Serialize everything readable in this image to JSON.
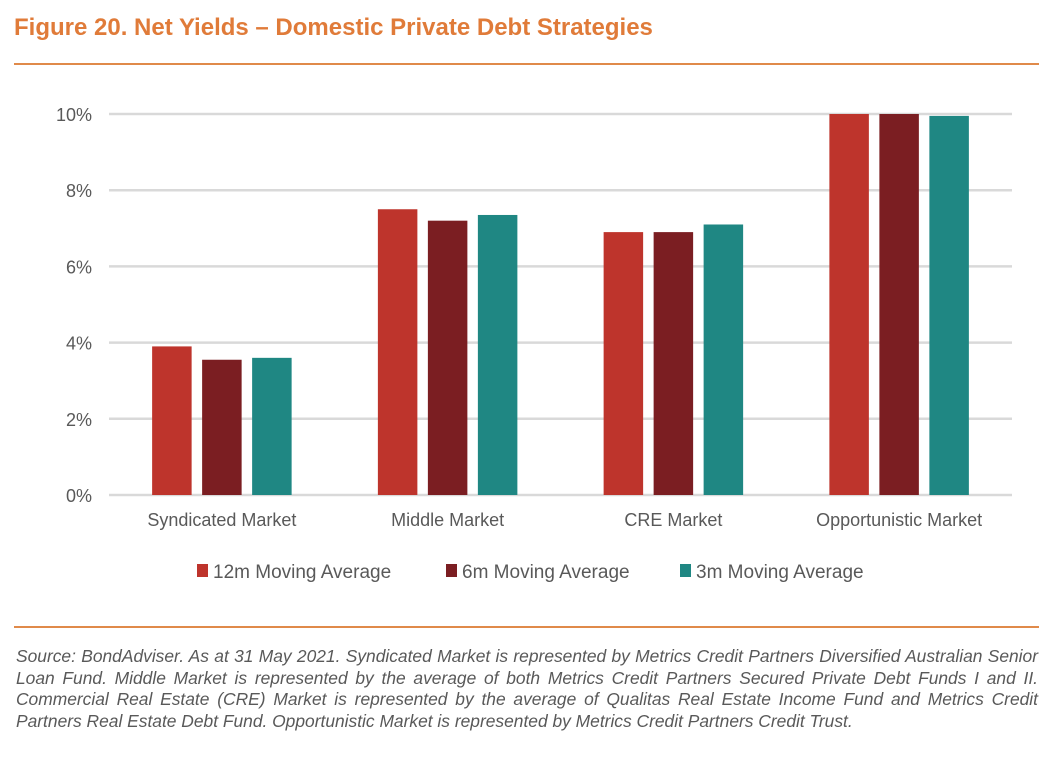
{
  "title": "Figure 20. Net Yields – Domestic Private Debt Strategies",
  "footnote": "Source: BondAdviser. As at 31 May 2021. Syndicated Market is represented by Metrics Credit Partners Diversified Australian Senior Loan Fund. Middle Market is represented by the average of both Metrics Credit Partners Secured Private Debt Funds I and II. Commercial Real Estate (CRE) Market is represented by the average of Qualitas Real Estate Income Fund and Metrics Credit Partners Real Estate Debt Fund. Opportunistic Market is represented by Metrics Credit Partners Credit Trust.",
  "colors": {
    "accent": "#E07B39",
    "series": [
      "#BE342C",
      "#7B1E22",
      "#1F8783"
    ],
    "grid": "#D9D9D9"
  },
  "chart_data": {
    "type": "bar",
    "title": "Net Yields – Domestic Private Debt Strategies",
    "xlabel": "",
    "ylabel": "",
    "categories": [
      "Syndicated Market",
      "Middle Market",
      "CRE Market",
      "Opportunistic Market"
    ],
    "series": [
      {
        "name": "12m Moving Average",
        "values": [
          3.9,
          7.5,
          6.9,
          10.0
        ]
      },
      {
        "name": "6m Moving Average",
        "values": [
          3.55,
          7.2,
          6.9,
          10.0
        ]
      },
      {
        "name": "3m Moving Average",
        "values": [
          3.6,
          7.35,
          7.1,
          9.95
        ]
      }
    ],
    "ylim": [
      0,
      10
    ],
    "yticks": [
      0,
      2,
      4,
      6,
      8,
      10
    ],
    "ytick_labels": [
      "0%",
      "2%",
      "4%",
      "6%",
      "8%",
      "10%"
    ],
    "grid": true,
    "legend_position": "bottom"
  }
}
